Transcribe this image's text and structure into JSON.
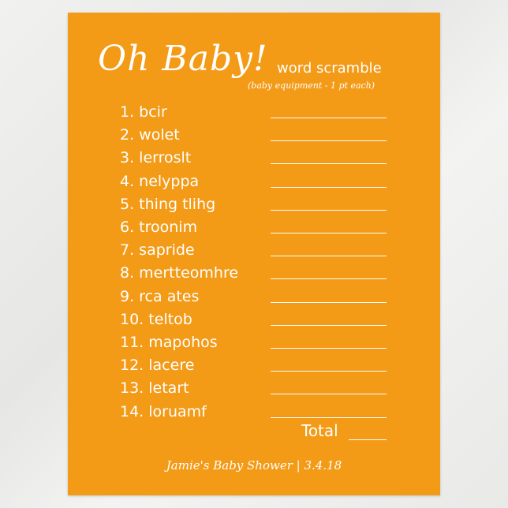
{
  "card": {
    "title": "Oh Baby!",
    "subtitle": "word scramble",
    "note": "(baby equipment - 1 pt each)",
    "items": [
      "1. bcir",
      "2. wolet",
      "3. lerroslt",
      "4. nelyppa",
      "5. thing tlihg",
      "6. troonim",
      "7. sapride",
      "8. mertteomhre",
      "9. rca ates",
      "10. teltob",
      "11. mapohos",
      "12. lacere",
      "13. letart",
      "14. loruamf"
    ],
    "total_label": "Total",
    "footer": "Jamie's Baby Shower | 3.4.18",
    "colors": {
      "card": "#f39a17",
      "text": "#ffffff"
    }
  }
}
